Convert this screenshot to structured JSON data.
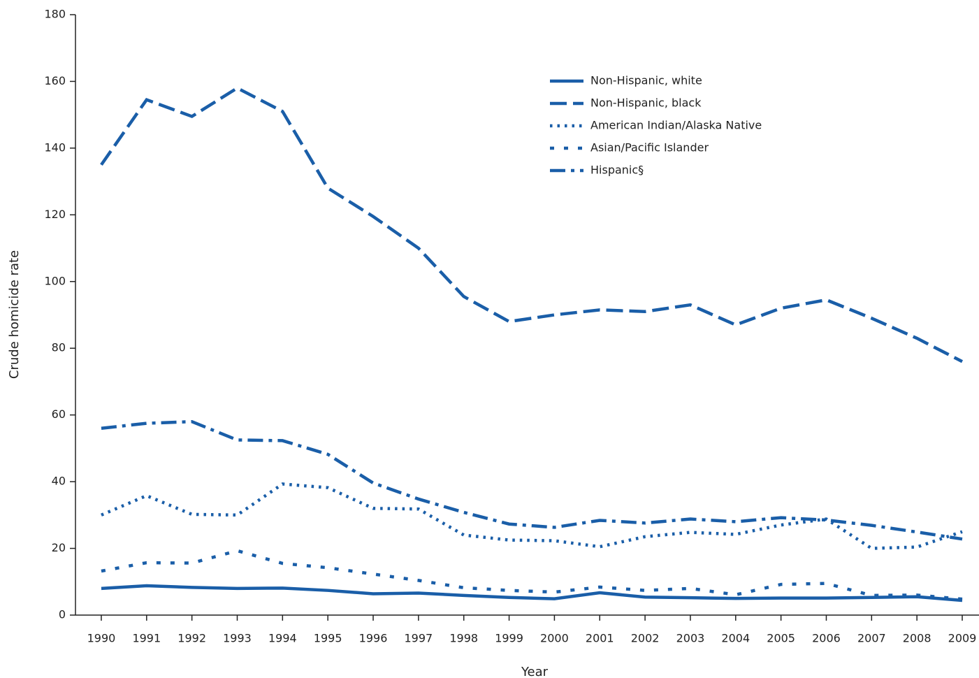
{
  "chart_data": {
    "type": "line",
    "x_label": "Year",
    "y_label": "Crude homicide rate",
    "x": [
      1990,
      1991,
      1992,
      1993,
      1994,
      1995,
      1996,
      1997,
      1998,
      1999,
      2000,
      2001,
      2002,
      2003,
      2004,
      2005,
      2006,
      2007,
      2008,
      2009
    ],
    "xlim": [
      1989.43,
      2009.37
    ],
    "xticks": [
      1990,
      1991,
      1992,
      1993,
      1994,
      1995,
      1996,
      1997,
      1998,
      1999,
      2000,
      2001,
      2002,
      2003,
      2004,
      2005,
      2006,
      2007,
      2008,
      2009
    ],
    "ylim": [
      0,
      180
    ],
    "yticks": [
      0,
      20,
      40,
      60,
      80,
      100,
      120,
      140,
      160,
      180
    ],
    "grid": false,
    "legend": "upper right",
    "series": [
      {
        "name": "Non-Hispanic, white",
        "color": "#1a5ea8",
        "dash": "solid",
        "values": [
          8.0,
          8.8,
          8.3,
          8.0,
          8.1,
          7.4,
          6.4,
          6.6,
          5.9,
          5.3,
          4.9,
          6.7,
          5.4,
          5.2,
          5.0,
          5.1,
          5.1,
          5.3,
          5.5,
          4.4
        ]
      },
      {
        "name": "Non-Hispanic, black",
        "color": "#1a5ea8",
        "dash": "dash",
        "values": [
          135,
          154.5,
          149.5,
          158,
          151,
          128,
          119.5,
          110,
          95.5,
          88,
          90,
          91.5,
          91,
          93,
          87,
          92,
          94.5,
          89,
          83,
          76
        ]
      },
      {
        "name": "American Indian/Alaska Native",
        "color": "#1a5ea8",
        "dash": "dot",
        "values": [
          30,
          35.8,
          30.2,
          30,
          39.3,
          38.2,
          32,
          31.8,
          24,
          22.5,
          22.3,
          20.5,
          23.5,
          24.8,
          24.2,
          27,
          28.8,
          20,
          20.4,
          25
        ]
      },
      {
        "name": "Asian/Pacific Islander",
        "color": "#1a5ea8",
        "dash": "sparse-dot",
        "values": [
          13.2,
          15.7,
          15.6,
          19.3,
          15.5,
          14.2,
          12.3,
          10.4,
          8.2,
          7.4,
          6.9,
          8.4,
          7.4,
          8.0,
          6.1,
          9.2,
          9.5,
          5.9,
          6.0,
          4.8
        ]
      },
      {
        "name": "Hispanic§",
        "color": "#1a5ea8",
        "dash": "dash-dot",
        "values": [
          56,
          57.5,
          58,
          52.5,
          52.3,
          48.2,
          39.6,
          34.8,
          30.8,
          27.3,
          26.3,
          28.4,
          27.6,
          28.8,
          28.0,
          29.2,
          28.5,
          26.9,
          24.9,
          22.8
        ]
      }
    ]
  }
}
